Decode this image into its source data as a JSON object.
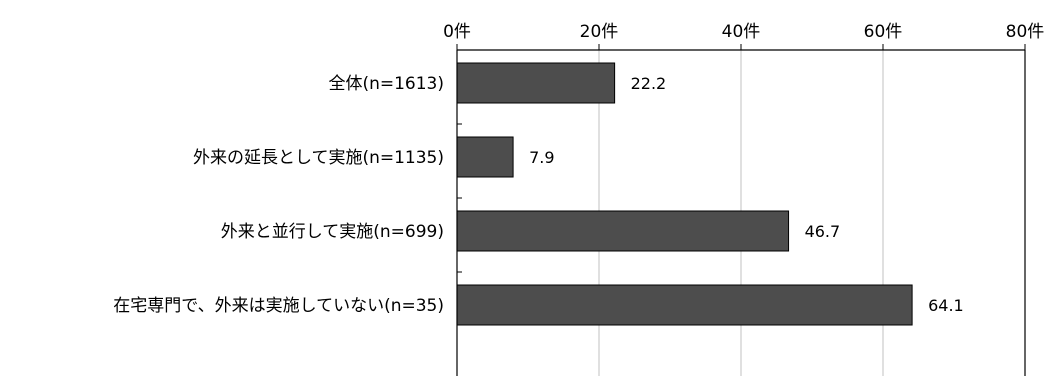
{
  "chart_data": {
    "type": "bar",
    "orientation": "horizontal",
    "categories": [
      "全体(n=1613)",
      "外来の延長として実施(n=1135)",
      "外来と並行して実施(n=699)",
      "在宅専門で、外来は実施していない(n=35)"
    ],
    "values": [
      22.2,
      7.9,
      46.7,
      64.1
    ],
    "value_labels": [
      "22.2",
      "7.9",
      "46.7",
      "64.1"
    ],
    "xlim": [
      0,
      80
    ],
    "x_ticks": [
      0,
      20,
      40,
      60,
      80
    ],
    "x_tick_labels": [
      "0件",
      "20件",
      "40件",
      "60件",
      "80件"
    ],
    "x_axis_position": "top",
    "grid": true,
    "colors": {
      "bar": "#4d4d4d",
      "bar_border": "#000000",
      "grid": "#c0c0c0",
      "axis": "#000000"
    }
  }
}
